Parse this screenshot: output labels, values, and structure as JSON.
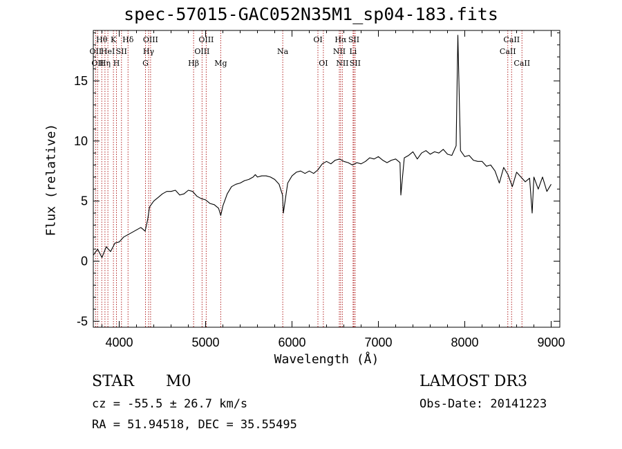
{
  "title": "spec-57015-GAC052N35M1_sp04-183.fits",
  "footer": {
    "object_class": "STAR",
    "subclass": "M0",
    "survey": "LAMOST DR3",
    "redshift": "cz = -55.5 ± 26.7 km/s",
    "obs_date": "Obs-Date: 20141223",
    "coords": "RA =  51.94518, DEC =  35.55495"
  },
  "colors": {
    "spectrum": "#000000",
    "line_markers": "#b22222",
    "axes": "#000000"
  },
  "chart_data": {
    "type": "line",
    "title": "spec-57015-GAC052N35M1_sp04-183.fits",
    "xlabel": "Wavelength (Å)",
    "ylabel": "Flux (relative)",
    "xlim": [
      3700,
      9100
    ],
    "ylim": [
      -5.5,
      19.2
    ],
    "x_ticks": [
      4000,
      5000,
      6000,
      7000,
      8000,
      9000
    ],
    "y_ticks": [
      -5,
      0,
      5,
      10,
      15
    ],
    "series": [
      {
        "name": "spectrum",
        "x": [
          3700,
          3750,
          3800,
          3850,
          3900,
          3950,
          4000,
          4050,
          4100,
          4150,
          4200,
          4250,
          4300,
          4330,
          4350,
          4400,
          4450,
          4500,
          4550,
          4600,
          4650,
          4700,
          4750,
          4800,
          4850,
          4900,
          4950,
          5000,
          5050,
          5100,
          5150,
          5175,
          5200,
          5250,
          5300,
          5350,
          5400,
          5450,
          5500,
          5550,
          5575,
          5600,
          5650,
          5700,
          5750,
          5800,
          5850,
          5890,
          5900,
          5950,
          6000,
          6050,
          6100,
          6150,
          6200,
          6250,
          6300,
          6350,
          6400,
          6450,
          6500,
          6550,
          6600,
          6650,
          6700,
          6750,
          6800,
          6850,
          6900,
          6950,
          7000,
          7050,
          7100,
          7150,
          7200,
          7250,
          7260,
          7300,
          7350,
          7400,
          7450,
          7500,
          7550,
          7600,
          7650,
          7700,
          7750,
          7800,
          7850,
          7900,
          7920,
          7950,
          8000,
          8050,
          8100,
          8150,
          8200,
          8250,
          8300,
          8350,
          8400,
          8450,
          8500,
          8550,
          8600,
          8650,
          8700,
          8750,
          8780,
          8800,
          8850,
          8900,
          8950,
          9000
        ],
        "y": [
          0.5,
          1.0,
          0.3,
          1.2,
          0.8,
          1.5,
          1.6,
          2.0,
          2.2,
          2.4,
          2.6,
          2.8,
          2.5,
          3.5,
          4.5,
          5.0,
          5.3,
          5.6,
          5.8,
          5.8,
          5.9,
          5.5,
          5.6,
          5.9,
          5.8,
          5.4,
          5.2,
          5.1,
          4.8,
          4.7,
          4.4,
          3.8,
          4.6,
          5.6,
          6.2,
          6.4,
          6.5,
          6.7,
          6.8,
          7.0,
          7.2,
          7.0,
          7.1,
          7.1,
          7.0,
          6.8,
          6.4,
          5.5,
          4.0,
          6.5,
          7.1,
          7.4,
          7.5,
          7.3,
          7.5,
          7.3,
          7.6,
          8.1,
          8.3,
          8.1,
          8.4,
          8.5,
          8.3,
          8.2,
          8.0,
          8.2,
          8.1,
          8.3,
          8.6,
          8.5,
          8.7,
          8.4,
          8.2,
          8.4,
          8.5,
          8.2,
          5.5,
          8.6,
          8.8,
          9.1,
          8.5,
          9.0,
          9.2,
          8.9,
          9.1,
          9.0,
          9.3,
          8.9,
          8.8,
          9.6,
          18.8,
          9.2,
          8.7,
          8.8,
          8.4,
          8.3,
          8.3,
          7.9,
          8.0,
          7.5,
          6.5,
          7.8,
          7.2,
          6.2,
          7.4,
          7.0,
          6.6,
          6.9,
          4.0,
          7.0,
          6.0,
          7.0,
          5.8,
          6.4
        ]
      }
    ],
    "line_markers": [
      {
        "x": 3727,
        "label": "OII",
        "row": 2
      },
      {
        "x": 3750,
        "label": "OII",
        "row": 3
      },
      {
        "x": 3798,
        "label": "Hθ",
        "row": 1
      },
      {
        "x": 3835,
        "label": "Hη",
        "row": 3
      },
      {
        "x": 3869,
        "label": "HeI",
        "row": 2
      },
      {
        "x": 3933,
        "label": "K",
        "row": 1
      },
      {
        "x": 3968,
        "label": "H",
        "row": 3
      },
      {
        "x": 4026,
        "label": "SII",
        "row": 2
      },
      {
        "x": 4102,
        "label": "Hδ",
        "row": 1
      },
      {
        "x": 4304,
        "label": "G",
        "row": 3
      },
      {
        "x": 4340,
        "label": "Hγ",
        "row": 2
      },
      {
        "x": 4363,
        "label": "OIII",
        "row": 1
      },
      {
        "x": 4861,
        "label": "Hβ",
        "row": 3
      },
      {
        "x": 4959,
        "label": "OIII",
        "row": 2
      },
      {
        "x": 5007,
        "label": "OIII",
        "row": 1
      },
      {
        "x": 5175,
        "label": "Mg",
        "row": 3
      },
      {
        "x": 5893,
        "label": "Na",
        "row": 2
      },
      {
        "x": 6300,
        "label": "OI",
        "row": 1
      },
      {
        "x": 6363,
        "label": "OI",
        "row": 3
      },
      {
        "x": 6548,
        "label": "NII",
        "row": 2
      },
      {
        "x": 6563,
        "label": "Hα",
        "row": 1
      },
      {
        "x": 6583,
        "label": "NII",
        "row": 3
      },
      {
        "x": 6707,
        "label": "Li",
        "row": 2
      },
      {
        "x": 6716,
        "label": "SII",
        "row": 1
      },
      {
        "x": 6731,
        "label": "SII",
        "row": 3
      },
      {
        "x": 8498,
        "label": "CaII",
        "row": 2
      },
      {
        "x": 8542,
        "label": "CaII",
        "row": 1
      },
      {
        "x": 8662,
        "label": "CaII",
        "row": 3
      }
    ]
  }
}
